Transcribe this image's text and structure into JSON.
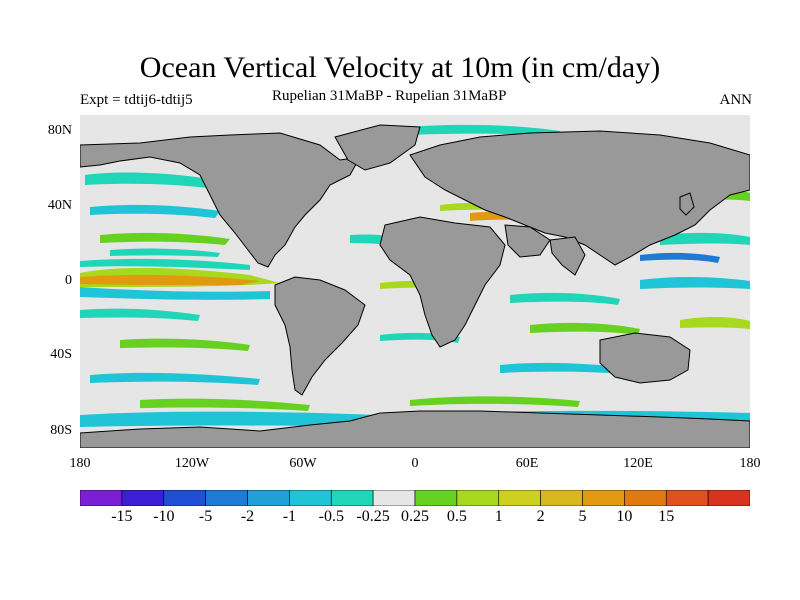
{
  "title": "Ocean Vertical Velocity at 10m (in cm/day)",
  "left_label": "Expt = tdtij6-tdtij5",
  "center_label": "Rupelian  31MaBP - Rupelian  31MaBP",
  "right_label": "ANN",
  "lat_ticks": [
    "80N",
    "40N",
    "0",
    "40S",
    "80S"
  ],
  "lon_ticks": [
    "180",
    "120W",
    "60W",
    "0",
    "60E",
    "120E",
    "180"
  ],
  "colors": {
    "background": "#e6e6e6",
    "land": "#999999",
    "coast": "#000000"
  },
  "colorbar": {
    "colors": [
      "#7a1fd6",
      "#3a1fd6",
      "#1f4fd6",
      "#1f7ad6",
      "#1fa0d6",
      "#1fc4d6",
      "#1fd6b8",
      "#e6e6e6",
      "#66d11f",
      "#a8d91f",
      "#cfcf1f",
      "#d9b81f",
      "#e09a10",
      "#e07a10",
      "#e0501f",
      "#d9331f"
    ],
    "labels": [
      "-15",
      "-10",
      "-5",
      "-2",
      "-1",
      "-0.5",
      "-0.25",
      "0.25",
      "0.5",
      "1",
      "2",
      "5",
      "10",
      "15"
    ]
  }
}
